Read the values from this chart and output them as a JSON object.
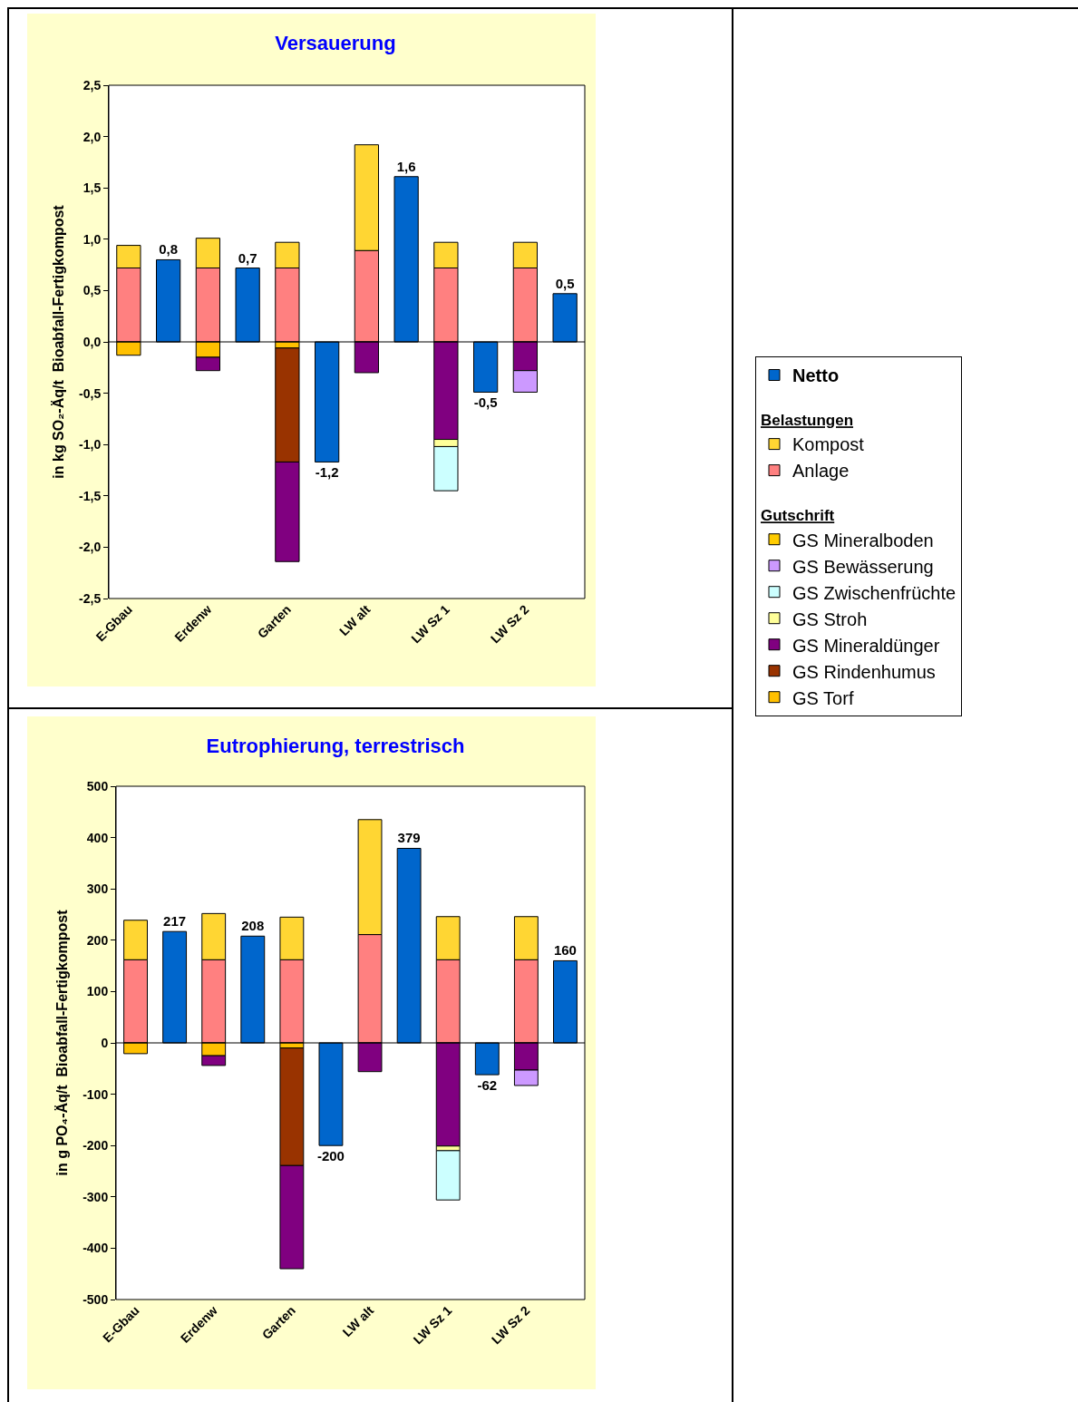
{
  "chart_data": [
    {
      "type": "bar",
      "title": "Versauerung",
      "ylabel": "in kg SO₂-Äq/t  Bioabfall-Fertigkompost",
      "categories": [
        "E-Gbau",
        null,
        "Erdenw",
        null,
        "Garten",
        null,
        "LW alt",
        null,
        "LW Sz 1",
        null,
        "LW Sz 2",
        null
      ],
      "stacked": true,
      "legend": false,
      "grid": false,
      "ref_lines": [
        {
          "axis": "y",
          "value": 0,
          "color": "#000000"
        }
      ],
      "ylim": [
        -2.5,
        2.5
      ],
      "yticks": [
        {
          "value": -2.5,
          "label": "-2,5"
        },
        {
          "value": -2,
          "label": "-2,0"
        },
        {
          "value": -1.5,
          "label": "-1,5"
        },
        {
          "value": -1,
          "label": "-1,0"
        },
        {
          "value": -0.5,
          "label": "-0,5"
        },
        {
          "value": 0,
          "label": "0,0"
        },
        {
          "value": 0.5,
          "label": "0,5"
        },
        {
          "value": 1,
          "label": "1,0"
        },
        {
          "value": 1.5,
          "label": "1,5"
        },
        {
          "value": 2,
          "label": "2,0"
        },
        {
          "value": 2.5,
          "label": "2,5"
        }
      ],
      "series": [
        {
          "color": "#0066cc",
          "values": [
            null,
            0.8,
            null,
            0.72,
            null,
            -1.17,
            null,
            1.61,
            null,
            -0.49,
            null,
            0.47
          ],
          "value_labels": [
            null,
            "0,8",
            null,
            "0,7",
            null,
            "-1,2",
            null,
            "1,6",
            null,
            "-0,5",
            null,
            "0,5"
          ]
        },
        {
          "color": "#ff8080",
          "values": [
            0.72,
            null,
            0.72,
            null,
            0.72,
            null,
            0.89,
            null,
            0.72,
            null,
            0.72,
            null
          ]
        },
        {
          "color": "#ffd633",
          "values": [
            0.22,
            null,
            0.29,
            null,
            0.25,
            null,
            1.03,
            null,
            0.25,
            null,
            0.25,
            null
          ]
        },
        {
          "color": "#ffc000",
          "values": [
            -0.13,
            null,
            -0.15,
            null,
            -0.06,
            null,
            null,
            null,
            null,
            null,
            null,
            null
          ]
        },
        {
          "color": "#993300",
          "values": [
            null,
            null,
            null,
            null,
            -1.11,
            null,
            null,
            null,
            null,
            null,
            null,
            null
          ]
        },
        {
          "color": "#800080",
          "values": [
            null,
            null,
            -0.13,
            null,
            -0.97,
            null,
            -0.3,
            null,
            -0.95,
            null,
            -0.28,
            null
          ]
        },
        {
          "color": "#ffff99",
          "values": [
            null,
            null,
            null,
            null,
            null,
            null,
            null,
            null,
            -0.07,
            null,
            null,
            null
          ]
        },
        {
          "color": "#ccffff",
          "values": [
            null,
            null,
            null,
            null,
            null,
            null,
            null,
            null,
            -0.43,
            null,
            null,
            null
          ]
        },
        {
          "color": "#cc99ff",
          "values": [
            null,
            null,
            null,
            null,
            null,
            null,
            null,
            null,
            null,
            null,
            -0.21,
            null
          ]
        }
      ]
    },
    {
      "type": "bar",
      "title": "Eutrophierung, terrestrisch",
      "ylabel": "in g PO₄-Äq/t  Bioabfall-Fertigkompost",
      "categories": [
        "E-Gbau",
        null,
        "Erdenw",
        null,
        "Garten",
        null,
        "LW alt",
        null,
        "LW Sz 1",
        null,
        "LW Sz 2",
        null
      ],
      "stacked": true,
      "legend": "right",
      "grid": false,
      "ref_lines": [
        {
          "axis": "y",
          "value": 0,
          "color": "#000000"
        }
      ],
      "annotations": [
        "Belastungen",
        "Gutschrift"
      ],
      "ylim": [
        -500,
        500
      ],
      "yticks": [
        -500,
        -400,
        -300,
        -200,
        -100,
        0,
        100,
        200,
        300,
        400,
        500
      ],
      "series": [
        {
          "name": "Netto",
          "color": "#0066cc",
          "values": [
            null,
            217,
            null,
            208,
            null,
            -200,
            null,
            379,
            null,
            -62,
            null,
            160
          ],
          "value_labels": [
            null,
            "217",
            null,
            "208",
            null,
            "-200",
            null,
            "379",
            null,
            "-62",
            null,
            "160"
          ]
        },
        {
          "name": "Anlage",
          "color": "#ff8080",
          "values": [
            162,
            null,
            162,
            null,
            162,
            null,
            211,
            null,
            162,
            null,
            162,
            null
          ]
        },
        {
          "name": "Kompost",
          "color": "#ffd633",
          "values": [
            77,
            null,
            90,
            null,
            83,
            null,
            224,
            null,
            84,
            null,
            84,
            null
          ]
        },
        {
          "name": "GS Torf",
          "color": "#ffc000",
          "values": [
            -21,
            null,
            -25,
            null,
            -10,
            null,
            null,
            null,
            null,
            null,
            null,
            null
          ]
        },
        {
          "name": "GS Rindenhumus",
          "color": "#993300",
          "values": [
            null,
            null,
            null,
            null,
            -229,
            null,
            null,
            null,
            null,
            null,
            null,
            null
          ]
        },
        {
          "name": "GS Mineraldünger",
          "color": "#800080",
          "values": [
            null,
            null,
            -19,
            null,
            -201,
            null,
            -56,
            null,
            -201,
            null,
            -53,
            null
          ]
        },
        {
          "name": "GS Stroh",
          "color": "#ffff99",
          "values": [
            null,
            null,
            null,
            null,
            null,
            null,
            null,
            null,
            -9,
            null,
            null,
            null
          ]
        },
        {
          "name": "GS Zwischenfrüchte",
          "color": "#ccffff",
          "values": [
            null,
            null,
            null,
            null,
            null,
            null,
            null,
            null,
            -96,
            null,
            null,
            null
          ]
        },
        {
          "name": "GS Bewässerung",
          "color": "#cc99ff",
          "values": [
            null,
            null,
            null,
            null,
            null,
            null,
            null,
            null,
            null,
            null,
            -30,
            null
          ]
        },
        {
          "name": "GS Mineralboden",
          "color": "#ffcc00",
          "values": [
            null,
            null,
            null,
            null,
            null,
            null,
            null,
            null,
            null,
            null,
            null,
            null
          ]
        }
      ]
    }
  ]
}
